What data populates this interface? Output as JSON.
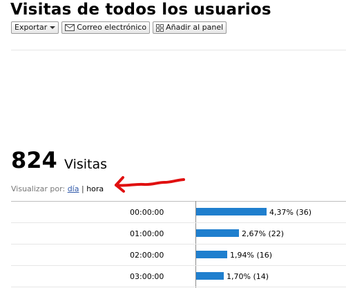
{
  "title": "Visitas de todos los usuarios",
  "toolbar": {
    "export_label": "Exportar",
    "email_label": "Correo electrónico",
    "dashboard_label": "Añadir al panel"
  },
  "summary": {
    "value": "824",
    "label": "Visitas"
  },
  "view_by": {
    "label": "Visualizar por:",
    "day": "día",
    "separator": "|",
    "hour": "hora"
  },
  "annotation": {
    "arrow_color": "#e01010"
  },
  "bar_color": "#1f7fce",
  "rows": [
    {
      "time": "00:00:00",
      "percent": 4.37,
      "label": "4,37% (36)"
    },
    {
      "time": "01:00:00",
      "percent": 2.67,
      "label": "2,67% (22)"
    },
    {
      "time": "02:00:00",
      "percent": 1.94,
      "label": "1,94% (16)"
    },
    {
      "time": "03:00:00",
      "percent": 1.7,
      "label": "1,70% (14)"
    }
  ]
}
